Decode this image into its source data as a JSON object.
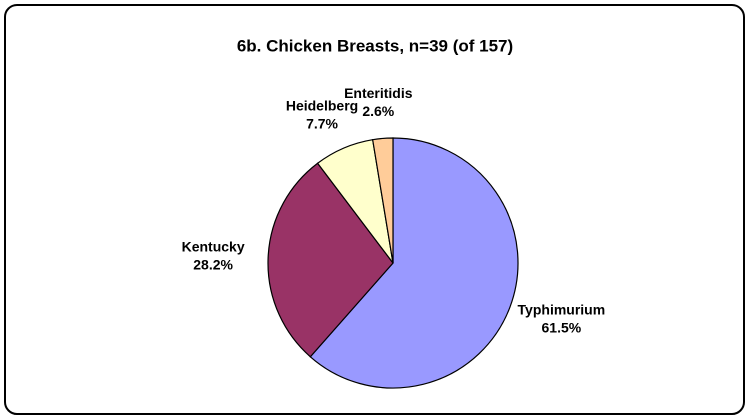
{
  "chart_data": {
    "type": "pie",
    "title": "6b. Chicken Breasts, n=39 (of 157)",
    "categories": [
      "Typhimurium",
      "Kentucky",
      "Heidelberg",
      "Enteritidis"
    ],
    "values": [
      61.5,
      28.2,
      7.7,
      2.6
    ],
    "value_labels": [
      "61.5%",
      "28.2%",
      "7.7%",
      "2.6%"
    ],
    "colors": [
      "#9999ff",
      "#993366",
      "#ffffcc",
      "#ffcc99"
    ]
  }
}
